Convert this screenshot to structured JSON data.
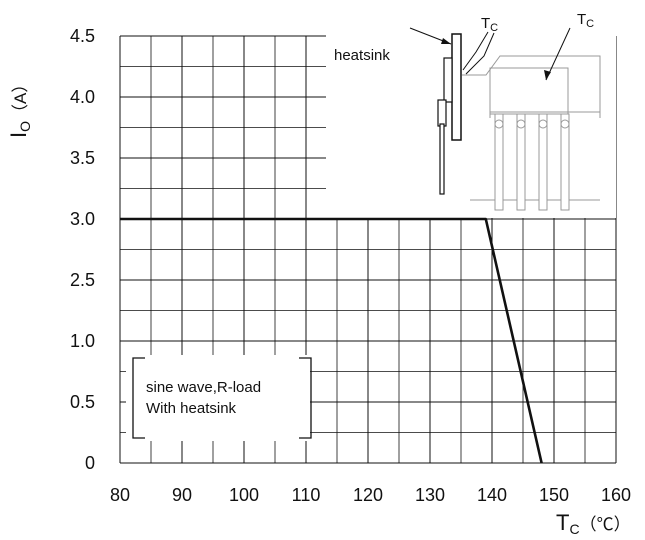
{
  "chart_data": {
    "type": "line",
    "x_ticks": [
      "80",
      "90",
      "100",
      "110",
      "120",
      "130",
      "140",
      "150",
      "160"
    ],
    "y_ticks": [
      "0",
      "0.5",
      "1.0",
      "2.5",
      "3.0",
      "3.5",
      "4.0",
      "4.5"
    ],
    "xlabel": {
      "main": "T",
      "sub": "C",
      "unit": "（℃）"
    },
    "ylabel": {
      "main": "I",
      "sub": "O",
      "unit": "（A）"
    },
    "xlim": [
      80,
      160
    ],
    "grid": true,
    "series": [
      {
        "x": [
          80,
          139,
          148
        ],
        "y": [
          3.0,
          3.0,
          0
        ]
      }
    ],
    "annotations": {
      "condition_line1": "sine wave,R-load",
      "condition_line2": "With heatsink",
      "heatsink_label": "heatsink",
      "tc_left": {
        "main": "T",
        "sub": "C"
      },
      "tc_right": {
        "main": "T",
        "sub": "C"
      }
    }
  }
}
